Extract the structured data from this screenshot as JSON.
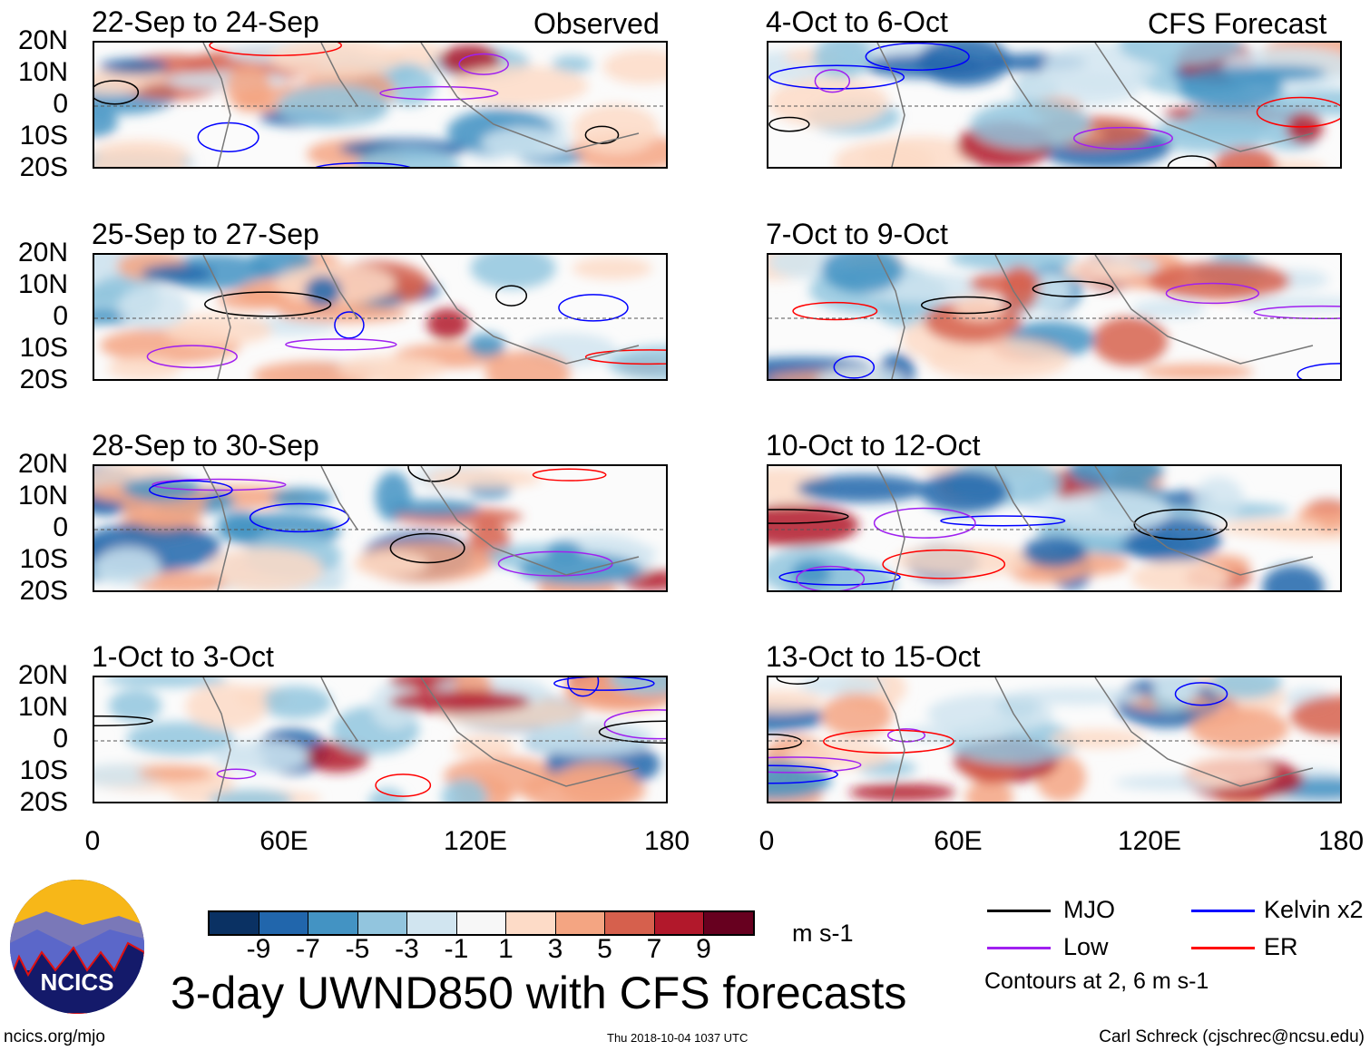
{
  "observed_label": "Observed",
  "forecast_label": "CFS Forecast",
  "panels_left": [
    "22-Sep to 24-Sep",
    "25-Sep to 27-Sep",
    "28-Sep to 30-Sep",
    "1-Oct to 3-Oct"
  ],
  "panels_right": [
    "4-Oct to 6-Oct",
    "7-Oct to 9-Oct",
    "10-Oct to 12-Oct",
    "13-Oct to 15-Oct"
  ],
  "y_ticks": [
    "20N",
    "10N",
    "0",
    "10S",
    "20S"
  ],
  "x_ticks": [
    "0",
    "60E",
    "120E",
    "180"
  ],
  "colorbar": {
    "colors": [
      "#0a3163",
      "#2166ac",
      "#4393c3",
      "#92c5de",
      "#d1e5f0",
      "#f7f7f7",
      "#fddbc7",
      "#f4a582",
      "#d6604d",
      "#b2182b",
      "#67001f"
    ],
    "labels": [
      "-9",
      "-7",
      "-5",
      "-3",
      "-1",
      "1",
      "3",
      "5",
      "7",
      "9"
    ],
    "units": "m s-1"
  },
  "legend": {
    "items": [
      {
        "label": "MJO",
        "color": "#000000"
      },
      {
        "label": "Kelvin x2",
        "color": "#0000ff"
      },
      {
        "label": "Low",
        "color": "#a020f0"
      },
      {
        "label": "ER",
        "color": "#ff0000"
      }
    ],
    "note": "Contours at 2, 6 m s-1"
  },
  "title": "3-day UWND850 with CFS forecasts",
  "logo_text": "NCICS",
  "footer": {
    "left": "ncics.org/mjo",
    "center": "Thu 2018-10-04 1037 UTC",
    "right": "Carl Schreck (cjschrec@ncsu.edu)"
  }
}
